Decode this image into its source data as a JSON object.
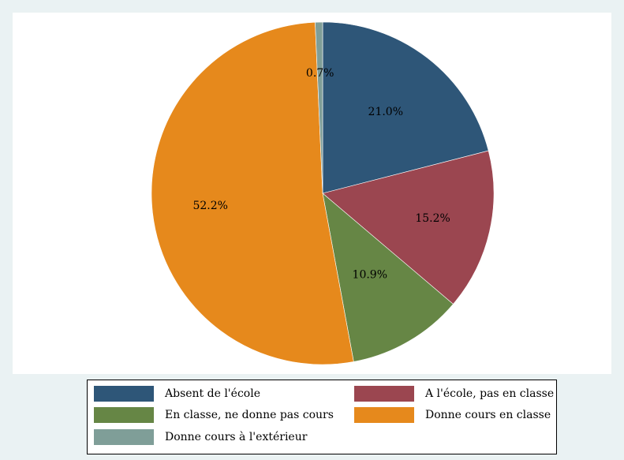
{
  "chart_data": {
    "type": "pie",
    "categories": [
      "Absent de l'école",
      "A l'école, pas en classe",
      "En classe, ne donne pas cours",
      "Donne cours en classe",
      "Donne cours à l'extérieur"
    ],
    "values": [
      21.0,
      15.2,
      10.9,
      52.2,
      0.7
    ],
    "value_labels": [
      "21.0%",
      "15.2%",
      "10.9%",
      "52.2%",
      "0.7%"
    ],
    "colors": [
      "#2e5678",
      "#9b4650",
      "#668645",
      "#e6891c",
      "#7f9e98"
    ],
    "start": "12 o'clock",
    "direction": "clockwise",
    "legend_position": "bottom",
    "legend_columns": 2
  }
}
